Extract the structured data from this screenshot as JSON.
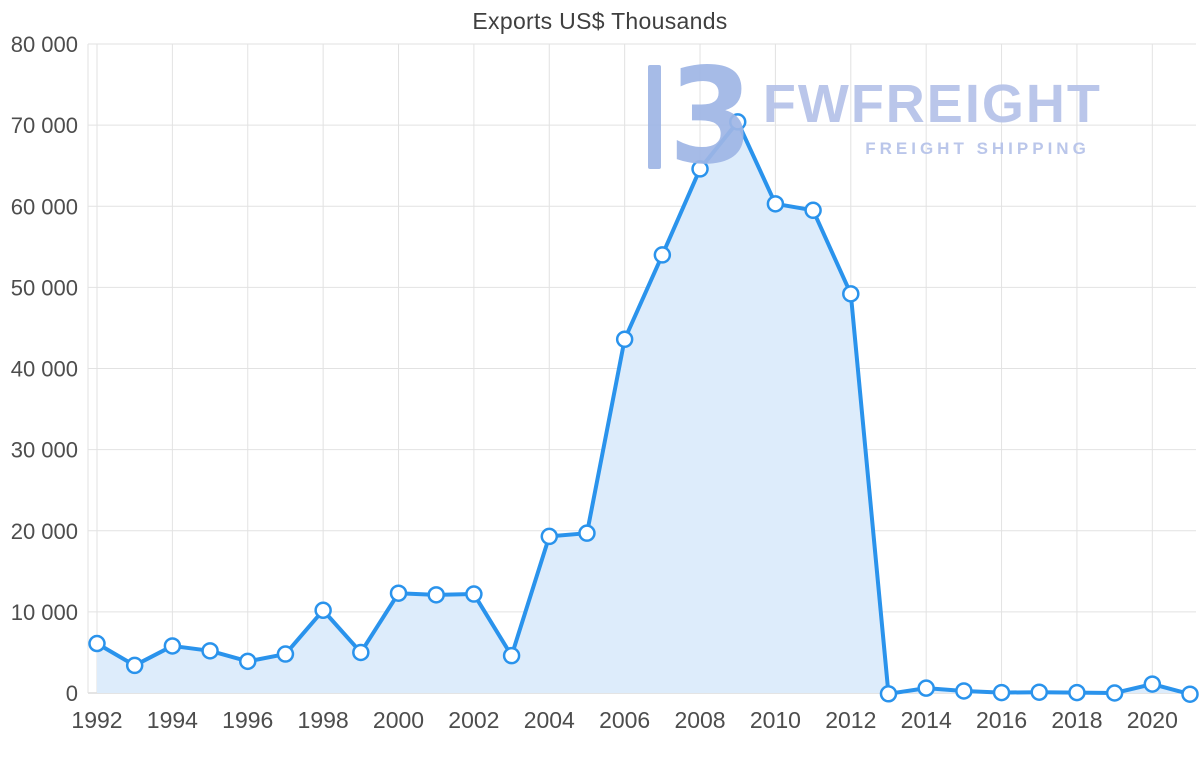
{
  "title": "Exports US$ Thousands",
  "watermark": {
    "logo_glyph": "3",
    "brand": "FWFREIGHT",
    "tagline": "FREIGHT SHIPPING"
  },
  "chart_data": {
    "type": "area",
    "title": "Exports US$ Thousands",
    "x": [
      1992,
      1993,
      1994,
      1995,
      1996,
      1997,
      1998,
      1999,
      2000,
      2001,
      2002,
      2003,
      2004,
      2005,
      2006,
      2007,
      2008,
      2009,
      2010,
      2011,
      2012,
      2013,
      2014,
      2015,
      2016,
      2017,
      2018,
      2019,
      2020,
      2021
    ],
    "values": [
      6100,
      3400,
      5800,
      5200,
      3900,
      4800,
      10200,
      5000,
      12300,
      12100,
      12200,
      4600,
      19300,
      19700,
      43600,
      54000,
      64600,
      70400,
      60300,
      59500,
      49200,
      -100,
      600,
      250,
      50,
      100,
      50,
      0,
      1100,
      -150
    ],
    "ylim": [
      0,
      80000
    ],
    "ytick_values": [
      0,
      10000,
      20000,
      30000,
      40000,
      50000,
      60000,
      70000,
      80000
    ],
    "ytick_labels": [
      "0",
      "10 000",
      "20 000",
      "30 000",
      "40 000",
      "50 000",
      "60 000",
      "70 000",
      "80 000"
    ],
    "xtick_years": [
      1992,
      1994,
      1996,
      1998,
      2000,
      2002,
      2004,
      2006,
      2008,
      2010,
      2012,
      2014,
      2016,
      2018,
      2020
    ],
    "xtick_labels": [
      "1992",
      "1994",
      "1996",
      "1998",
      "2000",
      "2002",
      "2004",
      "2006",
      "2008",
      "2010",
      "2012",
      "2014",
      "2016",
      "2018",
      "2020"
    ],
    "grid": true,
    "legend": "none",
    "colors": {
      "line": "#2a93ec",
      "fill": "#ddecfb",
      "marker_fill": "#ffffff",
      "marker_stroke": "#2a93ec",
      "grid": "#e2e2e2",
      "axis_line": "#c9c9c9",
      "axis_text": "#4d4d4d"
    }
  }
}
